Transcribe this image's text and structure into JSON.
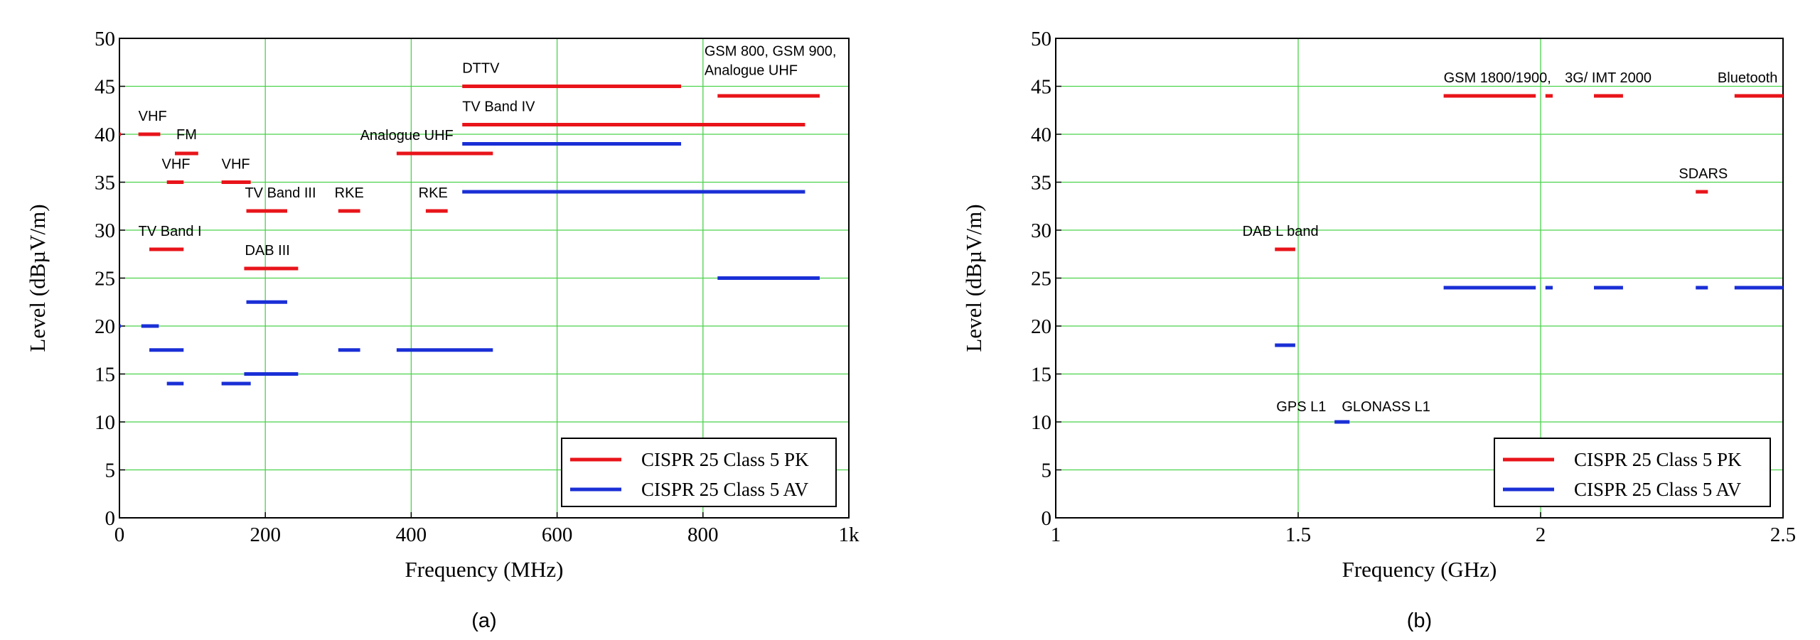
{
  "colors": {
    "pk": "#e8141a",
    "av": "#1a2fd6",
    "grid": "#4cd24c",
    "axis": "#000000"
  },
  "chart_data": [
    {
      "type": "line",
      "panel_label": "(a)",
      "xlabel": "Frequency (MHz)",
      "ylabel": "Level  (dBµV/m)",
      "xlim": [
        0,
        1000
      ],
      "ylim": [
        0,
        50
      ],
      "x_ticks": [
        0,
        200,
        400,
        600,
        800,
        1000
      ],
      "x_tick_labels": [
        "0",
        "200",
        "400",
        "600",
        "800",
        "1k"
      ],
      "y_ticks": [
        0,
        5,
        10,
        15,
        20,
        25,
        30,
        35,
        40,
        45,
        50
      ],
      "grid": true,
      "legend_position": "bottom-right",
      "series": [
        {
          "name": "CISPR 25 Class 5 PK",
          "color": "pk",
          "segments": [
            {
              "x": [
                0,
                0.4
              ],
              "y": 40
            },
            {
              "x": [
                26,
                56
              ],
              "y": 40
            },
            {
              "x": [
                76,
                108
              ],
              "y": 38
            },
            {
              "x": [
                65,
                88
              ],
              "y": 35
            },
            {
              "x": [
                140,
                180
              ],
              "y": 35
            },
            {
              "x": [
                41,
                88
              ],
              "y": 28
            },
            {
              "x": [
                174,
                230
              ],
              "y": 32
            },
            {
              "x": [
                300,
                330
              ],
              "y": 32
            },
            {
              "x": [
                420,
                450
              ],
              "y": 32
            },
            {
              "x": [
                171,
                245
              ],
              "y": 26
            },
            {
              "x": [
                380,
                512
              ],
              "y": 38
            },
            {
              "x": [
                470,
                770
              ],
              "y": 45
            },
            {
              "x": [
                470,
                940
              ],
              "y": 41
            },
            {
              "x": [
                820,
                960
              ],
              "y": 44
            }
          ]
        },
        {
          "name": "CISPR 25 Class 5 AV",
          "color": "av",
          "segments": [
            {
              "x": [
                0,
                0.4
              ],
              "y": 20
            },
            {
              "x": [
                30,
                54
              ],
              "y": 20
            },
            {
              "x": [
                41,
                88
              ],
              "y": 17.5
            },
            {
              "x": [
                65,
                88
              ],
              "y": 14
            },
            {
              "x": [
                140,
                180
              ],
              "y": 14
            },
            {
              "x": [
                174,
                230
              ],
              "y": 22.5
            },
            {
              "x": [
                171,
                245
              ],
              "y": 15
            },
            {
              "x": [
                300,
                330
              ],
              "y": 17.5
            },
            {
              "x": [
                380,
                512
              ],
              "y": 17.5
            },
            {
              "x": [
                470,
                770
              ],
              "y": 39
            },
            {
              "x": [
                470,
                940
              ],
              "y": 34
            },
            {
              "x": [
                820,
                960
              ],
              "y": 25
            }
          ]
        }
      ],
      "annotations": [
        {
          "text": "VHF",
          "x": 26,
          "y": 41.4
        },
        {
          "text": "FM",
          "x": 78,
          "y": 39.5
        },
        {
          "text": "VHF",
          "x": 58,
          "y": 36.4
        },
        {
          "text": "VHF",
          "x": 140,
          "y": 36.4
        },
        {
          "text": "TV Band III",
          "x": 172,
          "y": 33.4
        },
        {
          "text": "RKE",
          "x": 295,
          "y": 33.4
        },
        {
          "text": "RKE",
          "x": 410,
          "y": 33.4
        },
        {
          "text": "TV Band I",
          "x": 26,
          "y": 29.4
        },
        {
          "text": "DAB III",
          "x": 172,
          "y": 27.4
        },
        {
          "text": "Analogue UHF",
          "x": 330,
          "y": 39.4
        },
        {
          "text": "DTTV",
          "x": 470,
          "y": 46.4
        },
        {
          "text": "TV Band IV",
          "x": 470,
          "y": 42.4
        },
        {
          "text": "GSM 800, GSM 900,",
          "x": 802,
          "y": 48.2
        },
        {
          "text": "Analogue UHF",
          "x": 802,
          "y": 46.2
        }
      ]
    },
    {
      "type": "line",
      "panel_label": "(b)",
      "xlabel": "Frequency (GHz)",
      "ylabel": "Level  (dBµV/m)",
      "xlim": [
        1,
        2.5
      ],
      "ylim": [
        0,
        50
      ],
      "x_ticks": [
        1,
        1.5,
        2,
        2.5
      ],
      "x_tick_labels": [
        "1",
        "1.5",
        "2",
        "2.5"
      ],
      "y_ticks": [
        0,
        5,
        10,
        15,
        20,
        25,
        30,
        35,
        40,
        45,
        50
      ],
      "grid": true,
      "legend_position": "bottom-right",
      "series": [
        {
          "name": "CISPR 25 Class 5 PK",
          "color": "pk",
          "segments": [
            {
              "x": [
                1.452,
                1.494
              ],
              "y": 28
            },
            {
              "x": [
                1.8,
                1.99
              ],
              "y": 44
            },
            {
              "x": [
                2.01,
                2.025
              ],
              "y": 44
            },
            {
              "x": [
                2.11,
                2.17
              ],
              "y": 44
            },
            {
              "x": [
                2.32,
                2.345
              ],
              "y": 34
            },
            {
              "x": [
                2.4,
                2.5
              ],
              "y": 44
            }
          ]
        },
        {
          "name": "CISPR 25 Class 5 AV",
          "color": "av",
          "segments": [
            {
              "x": [
                1.452,
                1.494
              ],
              "y": 18
            },
            {
              "x": [
                1.575,
                1.606
              ],
              "y": 10
            },
            {
              "x": [
                1.8,
                1.99
              ],
              "y": 24
            },
            {
              "x": [
                2.01,
                2.025
              ],
              "y": 24
            },
            {
              "x": [
                2.11,
                2.17
              ],
              "y": 24
            },
            {
              "x": [
                2.32,
                2.345
              ],
              "y": 24
            },
            {
              "x": [
                2.4,
                2.5
              ],
              "y": 24
            }
          ]
        }
      ],
      "annotations": [
        {
          "text": "DAB L band",
          "x": 1.385,
          "y": 29.4
        },
        {
          "text": "GPS L1",
          "x": 1.455,
          "y": 11.1
        },
        {
          "text": "GLONASS L1",
          "x": 1.59,
          "y": 11.1
        },
        {
          "text": "GSM 1800/1900,",
          "x": 1.8,
          "y": 45.4
        },
        {
          "text": "3G/ IMT 2000",
          "x": 2.05,
          "y": 45.4
        },
        {
          "text": "SDARS",
          "x": 2.285,
          "y": 35.4
        },
        {
          "text": "Bluetooth",
          "x": 2.365,
          "y": 45.4
        }
      ]
    }
  ]
}
